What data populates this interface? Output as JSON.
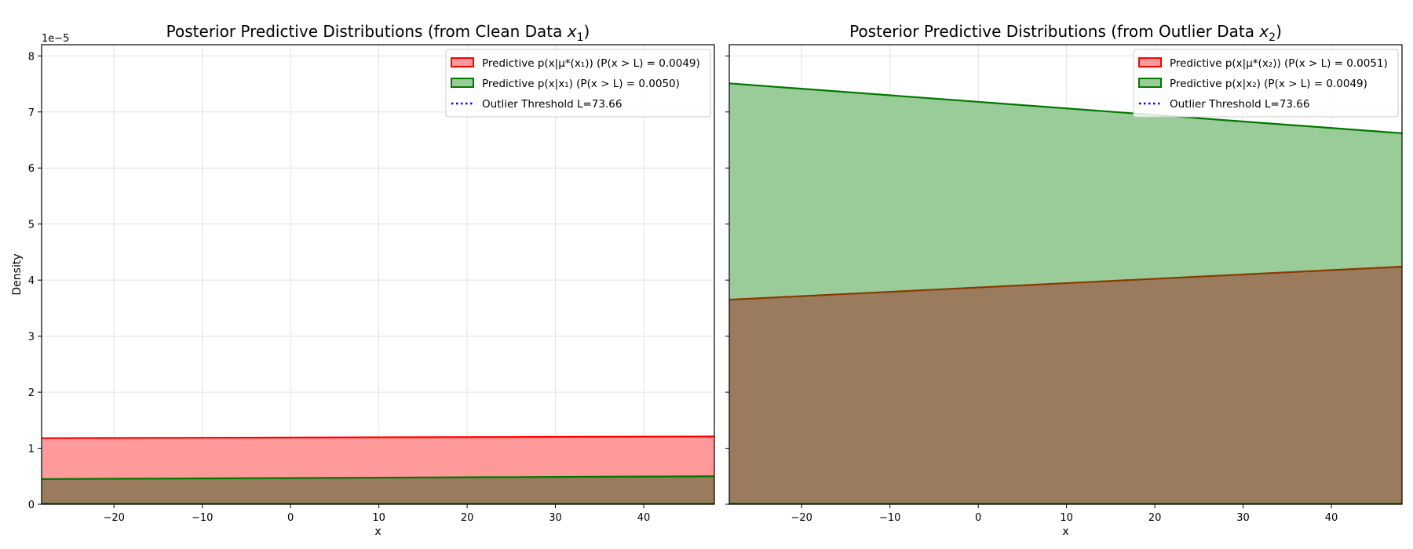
{
  "chart_data": [
    {
      "type": "area",
      "title": "Posterior Predictive Distributions (from Clean Data x₁)",
      "title_parts": [
        "Posterior Predictive Distributions (from Clean Data ",
        "x",
        "1",
        ")"
      ],
      "xlabel": "x",
      "ylabel": "Density",
      "y_offset_label": "1e−5",
      "xlim": [
        -28.2,
        48
      ],
      "ylim": [
        0,
        8.2
      ],
      "y_scale_exponent": -5,
      "grid": true,
      "legend_position": "top-right",
      "xticks": [
        -20,
        -10,
        0,
        10,
        20,
        30,
        40
      ],
      "xtick_labels": [
        "−20",
        "−10",
        "0",
        "10",
        "20",
        "30",
        "40"
      ],
      "yticks": [
        0,
        1,
        2,
        3,
        4,
        5,
        6,
        7,
        8
      ],
      "ytick_labels": [
        "0",
        "1",
        "2",
        "3",
        "4",
        "5",
        "6",
        "7",
        "8"
      ],
      "series": [
        {
          "name": "Predictive p(x|μ*(x₁)) (P(x > L) = 0.0049)",
          "color": "#ff0000",
          "fill": "#ff9a9a",
          "points": [
            [
              -28.2,
              1.18
            ],
            [
              48,
              1.21
            ]
          ]
        },
        {
          "name": "Predictive p(x|x₁) (P(x > L) = 0.0050)",
          "color": "#007800",
          "fill": "#9acc9a",
          "points": [
            [
              -28.2,
              0.45
            ],
            [
              48,
              0.5
            ]
          ]
        }
      ],
      "threshold": {
        "name": "Outlier Threshold L=73.66",
        "value": 73.66,
        "color": "#0000ff"
      },
      "overlap_fill": "#988e5a"
    },
    {
      "type": "area",
      "title": "Posterior Predictive Distributions (from Outlier Data x₂)",
      "title_parts": [
        "Posterior Predictive Distributions (from Outlier Data ",
        "x",
        "2",
        ")"
      ],
      "xlabel": "x",
      "ylabel": "",
      "y_offset_label": "",
      "xlim": [
        -28.2,
        48
      ],
      "ylim": [
        0,
        8.2
      ],
      "y_scale_exponent": -5,
      "grid": true,
      "legend_position": "top-right",
      "xticks": [
        -20,
        -10,
        0,
        10,
        20,
        30,
        40
      ],
      "xtick_labels": [
        "−20",
        "−10",
        "0",
        "10",
        "20",
        "30",
        "40"
      ],
      "yticks": [
        0,
        1,
        2,
        3,
        4,
        5,
        6,
        7,
        8
      ],
      "ytick_labels": [],
      "series": [
        {
          "name": "Predictive p(x|μ*(x₂)) (P(x > L) = 0.0051)",
          "color": "#ff0000",
          "fill": "#ff9a9a",
          "points": [
            [
              -28.2,
              3.65
            ],
            [
              48,
              4.24
            ]
          ]
        },
        {
          "name": "Predictive p(x|x₂) (P(x > L) = 0.0049)",
          "color": "#007800",
          "fill": "#9acc9a",
          "points": [
            [
              -28.2,
              7.51
            ],
            [
              48,
              6.62
            ]
          ]
        }
      ],
      "threshold": {
        "name": "Outlier Threshold L=73.66",
        "value": 73.66,
        "color": "#0000ff"
      },
      "overlap_fill": "#988e5a"
    }
  ]
}
